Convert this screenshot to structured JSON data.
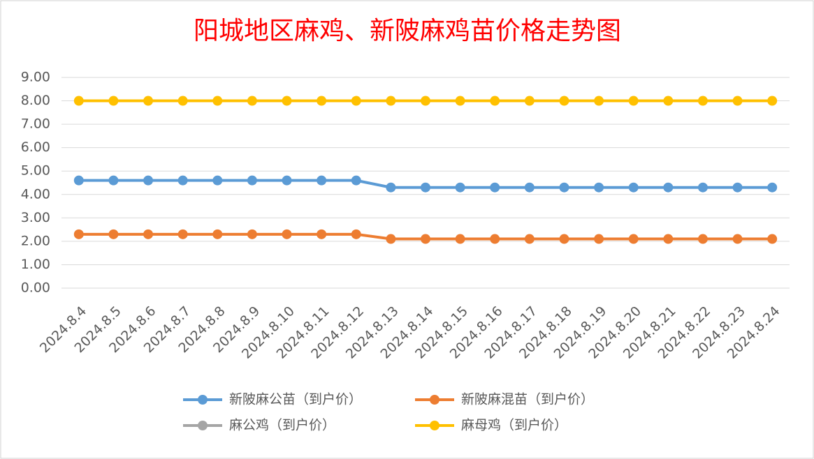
{
  "chart_data": {
    "type": "line",
    "title": "阳城地区麻鸡、新陂麻鸡苗价格走势图",
    "categories": [
      "2024.8.4",
      "2024.8.5",
      "2024.8.6",
      "2024.8.7",
      "2024.8.8",
      "2024.8.9",
      "2024.8.10",
      "2024.8.11",
      "2024.8.12",
      "2024.8.13",
      "2024.8.14",
      "2024.8.15",
      "2024.8.16",
      "2024.8.17",
      "2024.8.18",
      "2024.8.19",
      "2024.8.20",
      "2024.8.21",
      "2024.8.22",
      "2024.8.23",
      "2024.8.24"
    ],
    "series": [
      {
        "name": "新陂麻公苗（到户价）",
        "color": "#5b9bd5",
        "values": [
          4.6,
          4.6,
          4.6,
          4.6,
          4.6,
          4.6,
          4.6,
          4.6,
          4.6,
          4.3,
          4.3,
          4.3,
          4.3,
          4.3,
          4.3,
          4.3,
          4.3,
          4.3,
          4.3,
          4.3,
          4.3
        ]
      },
      {
        "name": "新陂麻混苗（到户价）",
        "color": "#ed7d31",
        "values": [
          2.3,
          2.3,
          2.3,
          2.3,
          2.3,
          2.3,
          2.3,
          2.3,
          2.3,
          2.1,
          2.1,
          2.1,
          2.1,
          2.1,
          2.1,
          2.1,
          2.1,
          2.1,
          2.1,
          2.1,
          2.1
        ]
      },
      {
        "name": "麻公鸡（到户价）",
        "color": "#a5a5a5",
        "values": [
          null,
          null,
          null,
          null,
          null,
          null,
          null,
          null,
          null,
          null,
          null,
          null,
          null,
          null,
          null,
          null,
          null,
          null,
          null,
          null,
          null
        ]
      },
      {
        "name": "麻母鸡（到户价）",
        "color": "#ffc000",
        "values": [
          8,
          8,
          8,
          8,
          8,
          8,
          8,
          8,
          8,
          8,
          8,
          8,
          8,
          8,
          8,
          8,
          8,
          8,
          8,
          8,
          8
        ]
      }
    ],
    "ylim": [
      0,
      9
    ],
    "yticks": [
      {
        "value": 0,
        "label": "0.00"
      },
      {
        "value": 1,
        "label": "1.00"
      },
      {
        "value": 2,
        "label": "2.00"
      },
      {
        "value": 3,
        "label": "3.00"
      },
      {
        "value": 4,
        "label": "4.00"
      },
      {
        "value": 5,
        "label": "5.00"
      },
      {
        "value": 6,
        "label": "6.00"
      },
      {
        "value": 7,
        "label": "7.00"
      },
      {
        "value": 8,
        "label": "8.00"
      },
      {
        "value": 9,
        "label": "9.00"
      }
    ],
    "grid": true,
    "legend": "bottom"
  }
}
